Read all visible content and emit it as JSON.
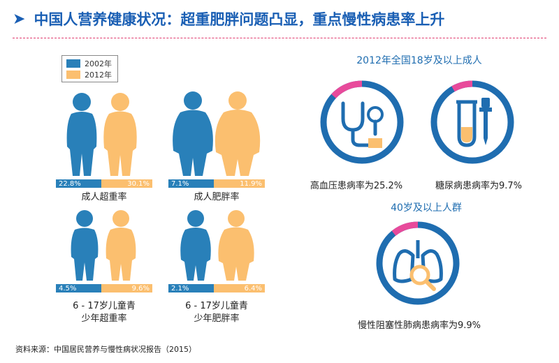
{
  "header": {
    "arrow": "➤",
    "title": "中国人营养健康状况：超重肥胖问题凸显，重点慢性病患率上升"
  },
  "legend": {
    "items": [
      {
        "label": "2002年",
        "color": "#2980b9"
      },
      {
        "label": "2012年",
        "color": "#fbbf6f"
      }
    ]
  },
  "panels": [
    {
      "id": "adult-overweight",
      "v2002": "22.8%",
      "v2012": "30.1%",
      "caption_lines": [
        "成人超重率"
      ]
    },
    {
      "id": "adult-obesity",
      "v2002": "7.1%",
      "v2012": "11.9%",
      "caption_lines": [
        "成人肥胖率"
      ]
    },
    {
      "id": "child-overweight",
      "v2002": "4.5%",
      "v2012": "9.6%",
      "caption_lines": [
        "6 - 17岁儿童青",
        "少年超重率"
      ]
    },
    {
      "id": "child-obesity",
      "v2002": "2.1%",
      "v2012": "6.4%",
      "caption_lines": [
        "6 - 17岁儿童青",
        "少年肥胖率"
      ]
    }
  ],
  "right": {
    "heading_adults": "2012年全国18岁及以上成人",
    "hypertension": "高血压患病率为25.2%",
    "diabetes": "糖尿病患病率为9.7%",
    "heading_40": "40岁及以上人群",
    "copd": "慢性阻塞性肺病患病率为9.9%"
  },
  "colors": {
    "blue": "#2980b9",
    "orange": "#fbbf6f",
    "ring_blue": "#1f6db0",
    "ring_pink": "#e84a9b"
  },
  "source": "资料来源：中国居民营养与慢性病状况报告（2015）"
}
